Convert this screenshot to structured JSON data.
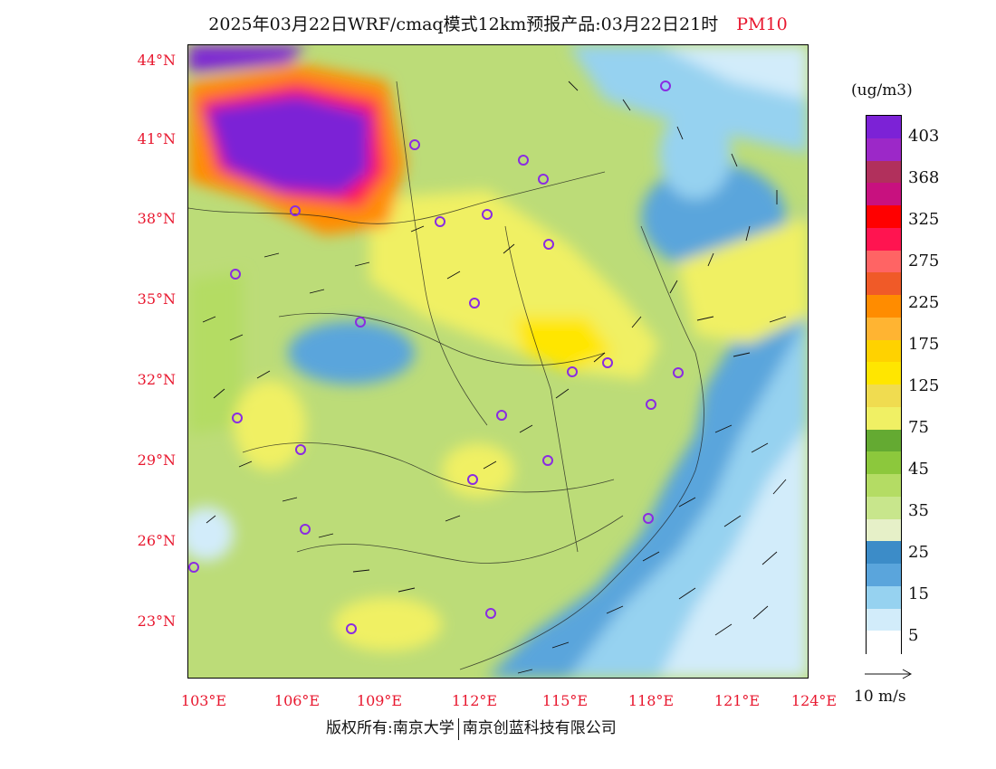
{
  "title": {
    "main": "2025年03月22日WRF/cmaq模式12km预报产品:03月22日21时",
    "pollutant": "PM10"
  },
  "axes": {
    "lat_labels": [
      "44°N",
      "41°N",
      "38°N",
      "35°N",
      "32°N",
      "29°N",
      "26°N",
      "23°N"
    ],
    "lon_labels": [
      "103°E",
      "106°E",
      "109°E",
      "112°E",
      "115°E",
      "118°E",
      "121°E",
      "124°E"
    ]
  },
  "legend": {
    "unit": "(ug/m3)",
    "levels": [
      "403",
      "368",
      "325",
      "275",
      "225",
      "175",
      "125",
      "75",
      "45",
      "35",
      "25",
      "15",
      "5"
    ],
    "colors": [
      "#7c22d6",
      "#9c28c8",
      "#b1305c",
      "#c8117f",
      "#ff0000",
      "#ff1450",
      "#ff6464",
      "#f05a28",
      "#ff8c00",
      "#ffb432",
      "#ffd200",
      "#ffe600",
      "#f0dc50",
      "#f0f064",
      "#64aa32",
      "#8cc83c",
      "#b4dc64",
      "#c8e68c",
      "#e6f0c8",
      "#3c8cc8",
      "#5aa5dc",
      "#96d2f0",
      "#d2ecfa",
      "#ffffff"
    ],
    "wind_reference": "10 m/s"
  },
  "copyright": {
    "left": "版权所有:南京大学",
    "right": "南京创蓝科技有限公司"
  }
}
